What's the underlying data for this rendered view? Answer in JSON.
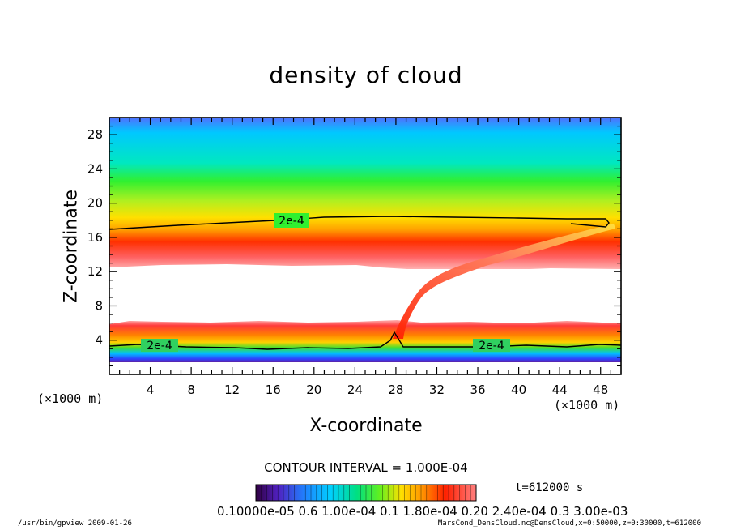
{
  "chart_data": {
    "type": "heatmap",
    "title": "density of cloud",
    "xlabel": "X-coordinate",
    "ylabel": "Z-coordinate",
    "x_unit_label": "(×1000 m)",
    "y_unit_label": "(×1000 m)",
    "xlim": [
      0,
      50
    ],
    "ylim": [
      0,
      30
    ],
    "x_ticks": [
      4,
      8,
      12,
      16,
      20,
      24,
      28,
      32,
      36,
      40,
      44,
      48
    ],
    "y_ticks": [
      4,
      8,
      12,
      16,
      20,
      24,
      28
    ],
    "contour_level_label": "2e-4",
    "contour_level": 0.0002,
    "contour_interval_text": "CONTOUR INTERVAL = 1.000E-04",
    "colorbar_range": [
      0.0001,
      0.0003
    ],
    "colorbar_labels_text": "0.10000e-05 0.6 1.00e-04 0.1 1.80e-04 0.20 2.40e-04 0.3 3.00e-03",
    "time_label": "t=612000 s",
    "footer_left": "/usr/bin/gpview  2009-01-26",
    "footer_right": "MarsCond_DensCloud.nc@DensCloud,x=0:50000,z=0:30000,t=612000",
    "regions": [
      {
        "name": "upper-band",
        "z_range": [
          12.5,
          30
        ],
        "description": "density decreasing upward from peak near z=14 to background"
      },
      {
        "name": "void",
        "z_range": [
          6,
          12.5
        ],
        "description": "no cloud (white)"
      },
      {
        "name": "lower-band",
        "z_range": [
          1,
          6
        ],
        "description": "dense layer near surface"
      },
      {
        "name": "plume",
        "x_range": [
          27.5,
          37
        ],
        "z_range": [
          4,
          16
        ],
        "description": "narrow filament rising from x≈28 to upper band"
      }
    ]
  },
  "colors": {
    "palette": [
      "#b0b0ff",
      "#3060ff",
      "#00c8ff",
      "#00e0a0",
      "#40f040",
      "#c0f020",
      "#ffe000",
      "#ffa000",
      "#ff3000",
      "#ff6060",
      "#ffc0c0"
    ]
  }
}
